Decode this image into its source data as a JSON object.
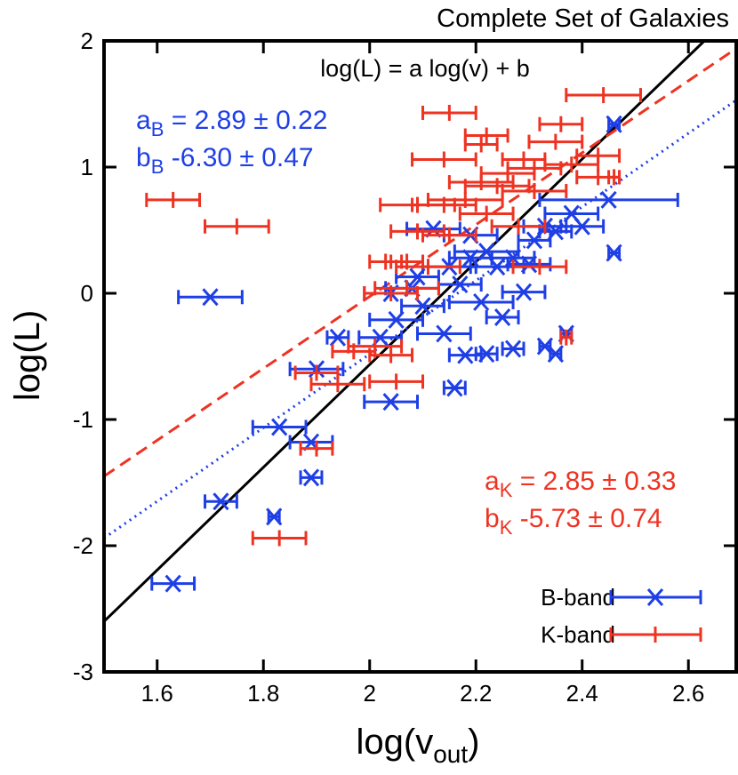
{
  "chart_data": {
    "type": "scatter",
    "title": "Complete Set of Galaxies",
    "xlabel": {
      "text": "log(v",
      "sub": "out",
      "after": ")"
    },
    "ylabel": "log(L)",
    "xlim": [
      1.5,
      2.69
    ],
    "ylim": [
      -3,
      2
    ],
    "xticks": [
      1.6,
      1.8,
      2,
      2.2,
      2.4,
      2.6
    ],
    "yticks": [
      -3,
      -2,
      -1,
      0,
      1,
      2
    ],
    "annotations": [
      {
        "text": "log(L) = a log(v) + b",
        "color": "#000000"
      },
      {
        "text": "a",
        "sub": "B",
        "after": " = 2.89 ± 0.22",
        "color": "#1f3fe6"
      },
      {
        "text": "b",
        "sub": "B",
        "after": " -6.30 ± 0.47",
        "color": "#1f3fe6"
      },
      {
        "text": "a",
        "sub": "K",
        "after": " = 2.85 ± 0.33",
        "color": "#ee3322"
      },
      {
        "text": "b",
        "sub": "K",
        "after": " -5.73 ± 0.74",
        "color": "#ee3322"
      }
    ],
    "legend": "lower right",
    "series": [
      {
        "name": "B-band",
        "color": "#1f3fe6",
        "marker": "x",
        "x": [
          1.63,
          1.72,
          1.82,
          1.83,
          1.89,
          1.89,
          1.7,
          1.94,
          1.9,
          2.04,
          2.02,
          2.05,
          2.1,
          2.14,
          2.16,
          2.18,
          2.22,
          2.27,
          2.33,
          2.35,
          2.37,
          2.25,
          2.29,
          2.21,
          2.17,
          2.12,
          2.15,
          2.19,
          2.22,
          2.24,
          2.27,
          2.31,
          2.35,
          2.38,
          2.4,
          2.45,
          2.46,
          2.46,
          2.09,
          2.04,
          2.08,
          2.3,
          2.33,
          2.19
        ],
        "y": [
          -2.3,
          -1.65,
          -1.77,
          -1.06,
          -1.18,
          -1.46,
          -0.03,
          -0.35,
          -0.6,
          -0.86,
          -0.35,
          -0.21,
          -0.1,
          -0.32,
          -0.75,
          -0.49,
          -0.48,
          -0.44,
          -0.42,
          -0.48,
          -0.32,
          -0.19,
          0.01,
          -0.07,
          0.07,
          0.51,
          0.21,
          0.28,
          0.33,
          0.21,
          0.28,
          0.42,
          0.49,
          0.63,
          0.53,
          0.74,
          0.32,
          1.34,
          0.13,
          0.0,
          0.04,
          0.23,
          0.53,
          0.46
        ],
        "xerr": [
          0.04,
          0.03,
          0.01,
          0.05,
          0.04,
          0.02,
          0.06,
          0.02,
          0.05,
          0.05,
          0.04,
          0.05,
          0.04,
          0.05,
          0.02,
          0.03,
          0.02,
          0.02,
          0.01,
          0.01,
          0.01,
          0.03,
          0.04,
          0.06,
          0.04,
          0.05,
          0.05,
          0.04,
          0.06,
          0.05,
          0.04,
          0.03,
          0.03,
          0.05,
          0.04,
          0.13,
          0.01,
          0.01,
          0.04,
          0.05,
          0.05,
          0.04,
          0.04,
          0.05
        ]
      },
      {
        "name": "K-band",
        "color": "#ee3322",
        "marker": "|",
        "x": [
          1.63,
          1.75,
          1.83,
          1.9,
          1.9,
          1.94,
          1.97,
          2.01,
          2.05,
          2.04,
          2.03,
          2.07,
          2.04,
          2.07,
          2.11,
          2.15,
          2.09,
          2.14,
          2.18,
          2.21,
          2.22,
          2.24,
          2.26,
          2.29,
          2.31,
          2.35,
          2.31,
          2.38,
          2.43,
          2.43,
          2.46,
          2.15,
          2.22,
          2.21,
          2.44,
          2.36,
          2.14,
          2.37,
          2.32,
          2.28,
          2.09
        ],
        "y": [
          0.74,
          0.53,
          -1.94,
          -1.23,
          -0.63,
          -0.72,
          -0.46,
          -0.42,
          -0.7,
          -0.49,
          0.25,
          0.25,
          0.0,
          0.04,
          0.21,
          0.46,
          0.7,
          0.7,
          0.74,
          0.88,
          0.63,
          0.85,
          0.95,
          1.06,
          0.99,
          1.2,
          0.81,
          1.02,
          1.09,
          0.92,
          0.92,
          1.43,
          1.25,
          1.18,
          1.57,
          1.34,
          1.06,
          -0.35,
          0.21,
          0.53,
          0.49
        ],
        "xerr": [
          0.05,
          0.06,
          0.05,
          0.03,
          0.04,
          0.05,
          0.04,
          0.05,
          0.05,
          0.04,
          0.03,
          0.03,
          0.05,
          0.06,
          0.06,
          0.05,
          0.07,
          0.06,
          0.07,
          0.06,
          0.05,
          0.06,
          0.05,
          0.04,
          0.05,
          0.05,
          0.06,
          0.05,
          0.04,
          0.04,
          0.01,
          0.05,
          0.04,
          0.03,
          0.07,
          0.04,
          0.06,
          0.01,
          0.05,
          0.05,
          0.05
        ]
      }
    ],
    "lines": [
      {
        "color": "#000000",
        "dash": "none",
        "x": [
          1.5,
          2.63
        ],
        "y": [
          -2.6,
          2
        ]
      },
      {
        "color": "#ee3322",
        "dash": "14 8",
        "x": [
          1.5,
          2.69
        ],
        "y": [
          -1.45,
          1.94
        ]
      },
      {
        "color": "#1f3fe6",
        "dash": "2 5",
        "x": [
          1.5,
          2.69
        ],
        "y": [
          -1.94,
          1.53
        ]
      }
    ]
  }
}
